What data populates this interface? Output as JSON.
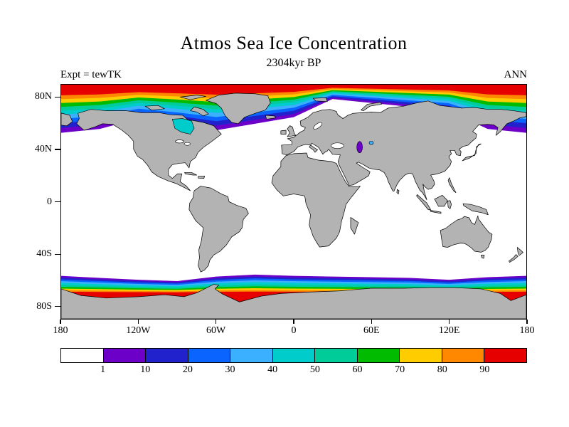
{
  "title": "Atmos Sea Ice Concentration",
  "subtitle": "2304kyr BP",
  "annotations": {
    "left": "Expt = tewTK",
    "right": "ANN"
  },
  "axes": {
    "lat_ticks": [
      {
        "label": "80N",
        "value": 80
      },
      {
        "label": "40N",
        "value": 40
      },
      {
        "label": "0",
        "value": 0
      },
      {
        "label": "40S",
        "value": -40
      },
      {
        "label": "80S",
        "value": -80
      }
    ],
    "lon_ticks": [
      {
        "label": "180",
        "value": -180
      },
      {
        "label": "120W",
        "value": -120
      },
      {
        "label": "60W",
        "value": -60
      },
      {
        "label": "0",
        "value": 0
      },
      {
        "label": "60E",
        "value": 60
      },
      {
        "label": "120E",
        "value": 120
      },
      {
        "label": "180",
        "value": 180
      }
    ]
  },
  "colorbar": {
    "tick_labels": [
      "1",
      "10",
      "20",
      "30",
      "40",
      "50",
      "60",
      "70",
      "80",
      "90"
    ]
  },
  "chart_data": {
    "type": "heatmap",
    "title": "Atmos Sea Ice Concentration",
    "time_label": "2304kyr BP",
    "experiment": "tewTK",
    "season": "ANN",
    "variable": "Sea Ice Concentration",
    "levels": [
      1,
      10,
      20,
      30,
      40,
      50,
      60,
      70,
      80,
      90
    ],
    "palette": [
      "#FFFFFF",
      "#6C00C8",
      "#2222CC",
      "#0A64FF",
      "#3BB0FF",
      "#00CCCC",
      "#00CC99",
      "#00BB00",
      "#FFCC00",
      "#FF8800",
      "#E60000"
    ],
    "land_color": "#b3b3b3",
    "lon_range": [
      -180,
      180
    ],
    "lat_range": [
      -90,
      90
    ],
    "arctic_ice_edge": {
      "lons": [
        -180,
        -150,
        -120,
        -90,
        -60,
        -30,
        0,
        30,
        60,
        90,
        120,
        150,
        180
      ],
      "lats": [
        53,
        56,
        64,
        60,
        55,
        60,
        65,
        79,
        76,
        73,
        70,
        56,
        53
      ]
    },
    "antarctic_ice_edge": {
      "lons": [
        -180,
        -150,
        -120,
        -90,
        -60,
        -30,
        0,
        30,
        60,
        90,
        120,
        150,
        180
      ],
      "lats": [
        -57,
        -58.5,
        -60,
        -61,
        -57.5,
        -56,
        -57,
        -57.5,
        -58,
        -58.5,
        -60,
        -58,
        -57
      ]
    }
  }
}
